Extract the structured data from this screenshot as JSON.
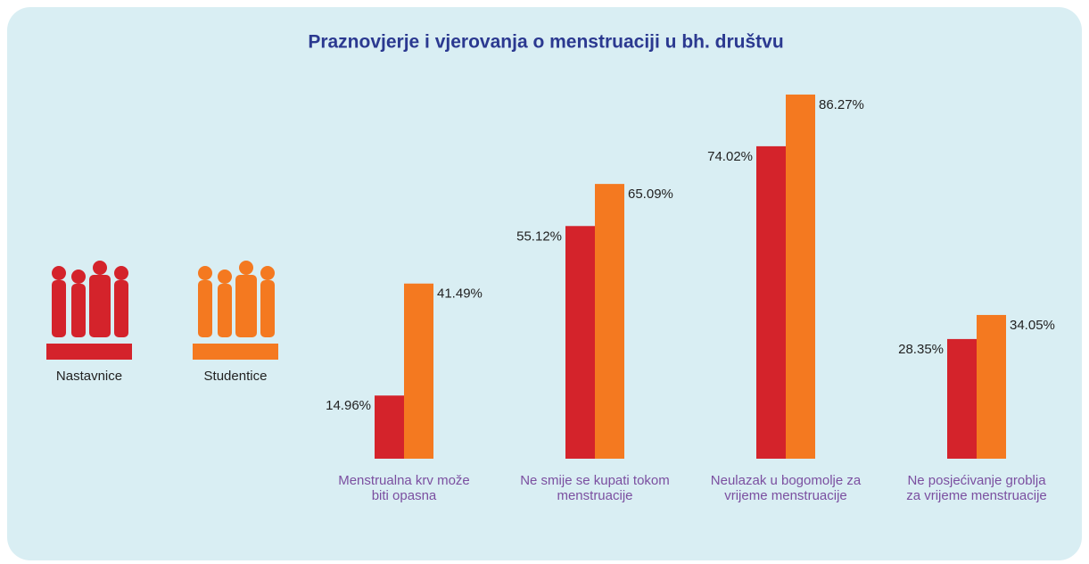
{
  "chart_data": {
    "type": "bar",
    "title": "Praznovjerje i vjerovanja o menstruaciji u bh. društvu",
    "categories": [
      "Menstrualna krv može biti opasna",
      "Ne smije se kupati tokom menstruacije",
      "Neulazak u bogomolje za vrijeme menstruacije",
      "Ne posjećivanje groblja za vrijeme menstruacije"
    ],
    "series": [
      {
        "name": "Nastavnice",
        "color": "#d4232b",
        "values": [
          14.96,
          55.12,
          74.02,
          28.35
        ],
        "value_labels": [
          "14.96%",
          "55.12%",
          "74.02%",
          "28.35%"
        ]
      },
      {
        "name": "Studentice",
        "color": "#f47920",
        "values": [
          41.49,
          65.09,
          86.27,
          34.05
        ],
        "value_labels": [
          "41.49%",
          "65.09%",
          "86.27%",
          "34.05%"
        ]
      }
    ]
  }
}
